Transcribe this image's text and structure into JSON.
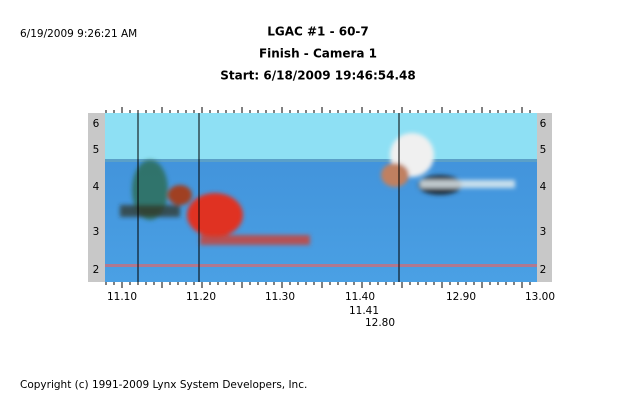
{
  "header": {
    "timestamp": "6/19/2009 9:26:21 AM",
    "title": "LGAC #1 - 60-7",
    "subtitle": "Finish - Camera 1",
    "start": "Start: 6/18/2009 19:46:54.48"
  },
  "lanes": [
    "6",
    "5",
    "4",
    "3",
    "2"
  ],
  "time_axis": [
    "11.10",
    "11.20",
    "11.30",
    "11.40",
    "12.90",
    "13.00"
  ],
  "markers": [
    "11.41",
    "12.80"
  ],
  "footer": "Copyright (c) 1991-2009 Lynx System Developers, Inc."
}
